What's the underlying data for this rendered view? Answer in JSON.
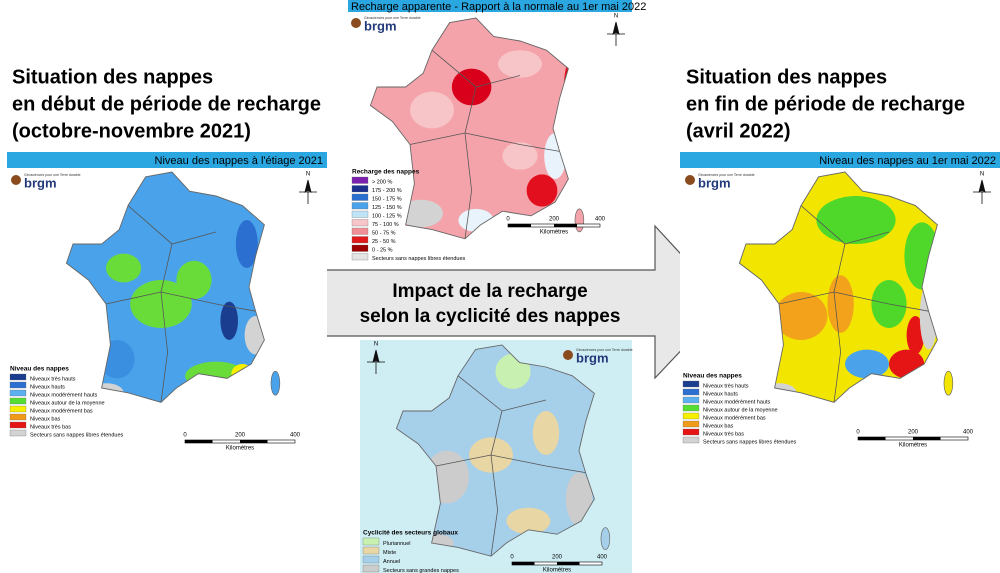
{
  "left_heading": [
    "Situation des nappes",
    "en début de période de recharge",
    "(octobre-novembre 2021)"
  ],
  "right_heading": [
    "Situation des nappes",
    "en fin de période de recharge",
    "(avril 2022)"
  ],
  "arrow_text": [
    "Impact de la recharge",
    "selon la cyclicité des nappes"
  ],
  "logo": {
    "tagline": "Géosciences pour une Terre durable",
    "name": "brgm"
  },
  "north": "N",
  "scale": {
    "ticks": [
      0,
      200,
      400
    ],
    "unit": "Kilomètres"
  },
  "left_map": {
    "title": "Niveau des nappes à l'étiage 2021",
    "legend_title": "Niveau des nappes",
    "legend": [
      "Niveaux très hauts",
      "Niveaux hauts",
      "Niveaux modérément hauts",
      "Niveaux autour de la moyenne",
      "Niveaux modérément bas",
      "Niveaux bas",
      "Niveaux très bas",
      "Secteurs sans nappes libres étendues"
    ]
  },
  "right_map": {
    "title": "Niveau des nappes au 1er mai 2022",
    "legend_title": "Niveau des nappes",
    "legend": [
      "Niveaux très hauts",
      "Niveaux hauts",
      "Niveaux modérément hauts",
      "Niveaux autour de la moyenne",
      "Niveaux modérément bas",
      "Niveaux bas",
      "Niveaux très bas",
      "Secteurs sans nappes libres étendues"
    ]
  },
  "top_map": {
    "title": "Recharge apparente - Rapport à la normale au 1er mai 2022",
    "legend_title": "Recharge des nappes",
    "legend": [
      "> 200 %",
      "175 - 200 %",
      "150 - 175 %",
      "125 - 150 %",
      "100 - 125 %",
      "75 - 100 %",
      "50 - 75 %",
      "25 - 50 %",
      "0 - 25 %",
      "Secteurs sans nappes libres étendues"
    ]
  },
  "bottom_map": {
    "legend_title": "Cyclicité des secteurs globaux",
    "legend": [
      "Pluriannuel",
      "Mixte",
      "Annuel",
      "Secteurs sans grandes nappes"
    ]
  }
}
